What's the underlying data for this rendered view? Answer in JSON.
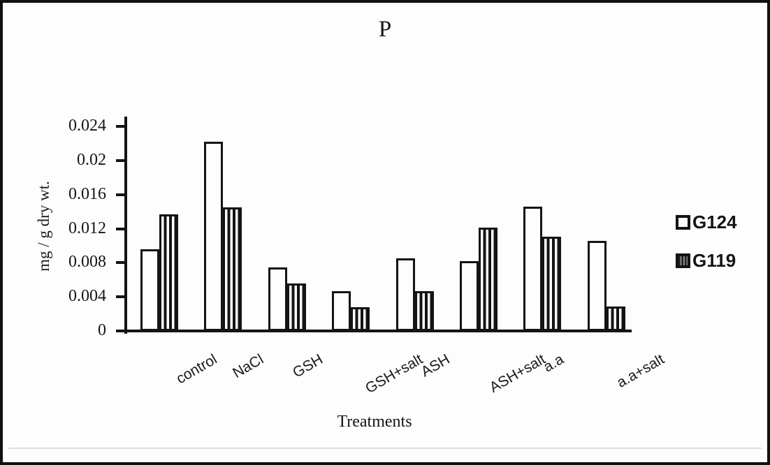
{
  "chart_data": {
    "type": "bar",
    "title": "P",
    "xlabel": "Treatments",
    "ylabel": "mg / g dry wt.",
    "categories": [
      "control",
      "NaCl",
      "GSH",
      "GSH+salt",
      "ASH",
      "ASH+salt",
      "a.a",
      "a.a+salt"
    ],
    "series": [
      {
        "name": "G124",
        "fill": "open-white",
        "values": [
          0.0096,
          0.0222,
          0.0075,
          0.0047,
          0.0085,
          0.0082,
          0.0146,
          0.0106
        ]
      },
      {
        "name": "G119",
        "fill": "vertical-hatch",
        "values": [
          0.0137,
          0.0145,
          0.0056,
          0.0028,
          0.0047,
          0.0121,
          0.0111,
          0.0029
        ]
      }
    ],
    "ylim": [
      0,
      0.024
    ],
    "ytick_step": 0.004,
    "ytick_labels": [
      "0",
      "0.004",
      "0.008",
      "0.012",
      "0.016",
      "0.02",
      "0.024"
    ],
    "grid": false,
    "legend_position": "right",
    "bar_outline_color": "#141414"
  },
  "legend": {
    "items": [
      {
        "label": "G124",
        "swatch": "open-square"
      },
      {
        "label": "G119",
        "swatch": "hatched-square"
      }
    ]
  },
  "colors": {
    "ink": "#141414",
    "background": "#fdfdfd",
    "page_border": "#101010"
  }
}
